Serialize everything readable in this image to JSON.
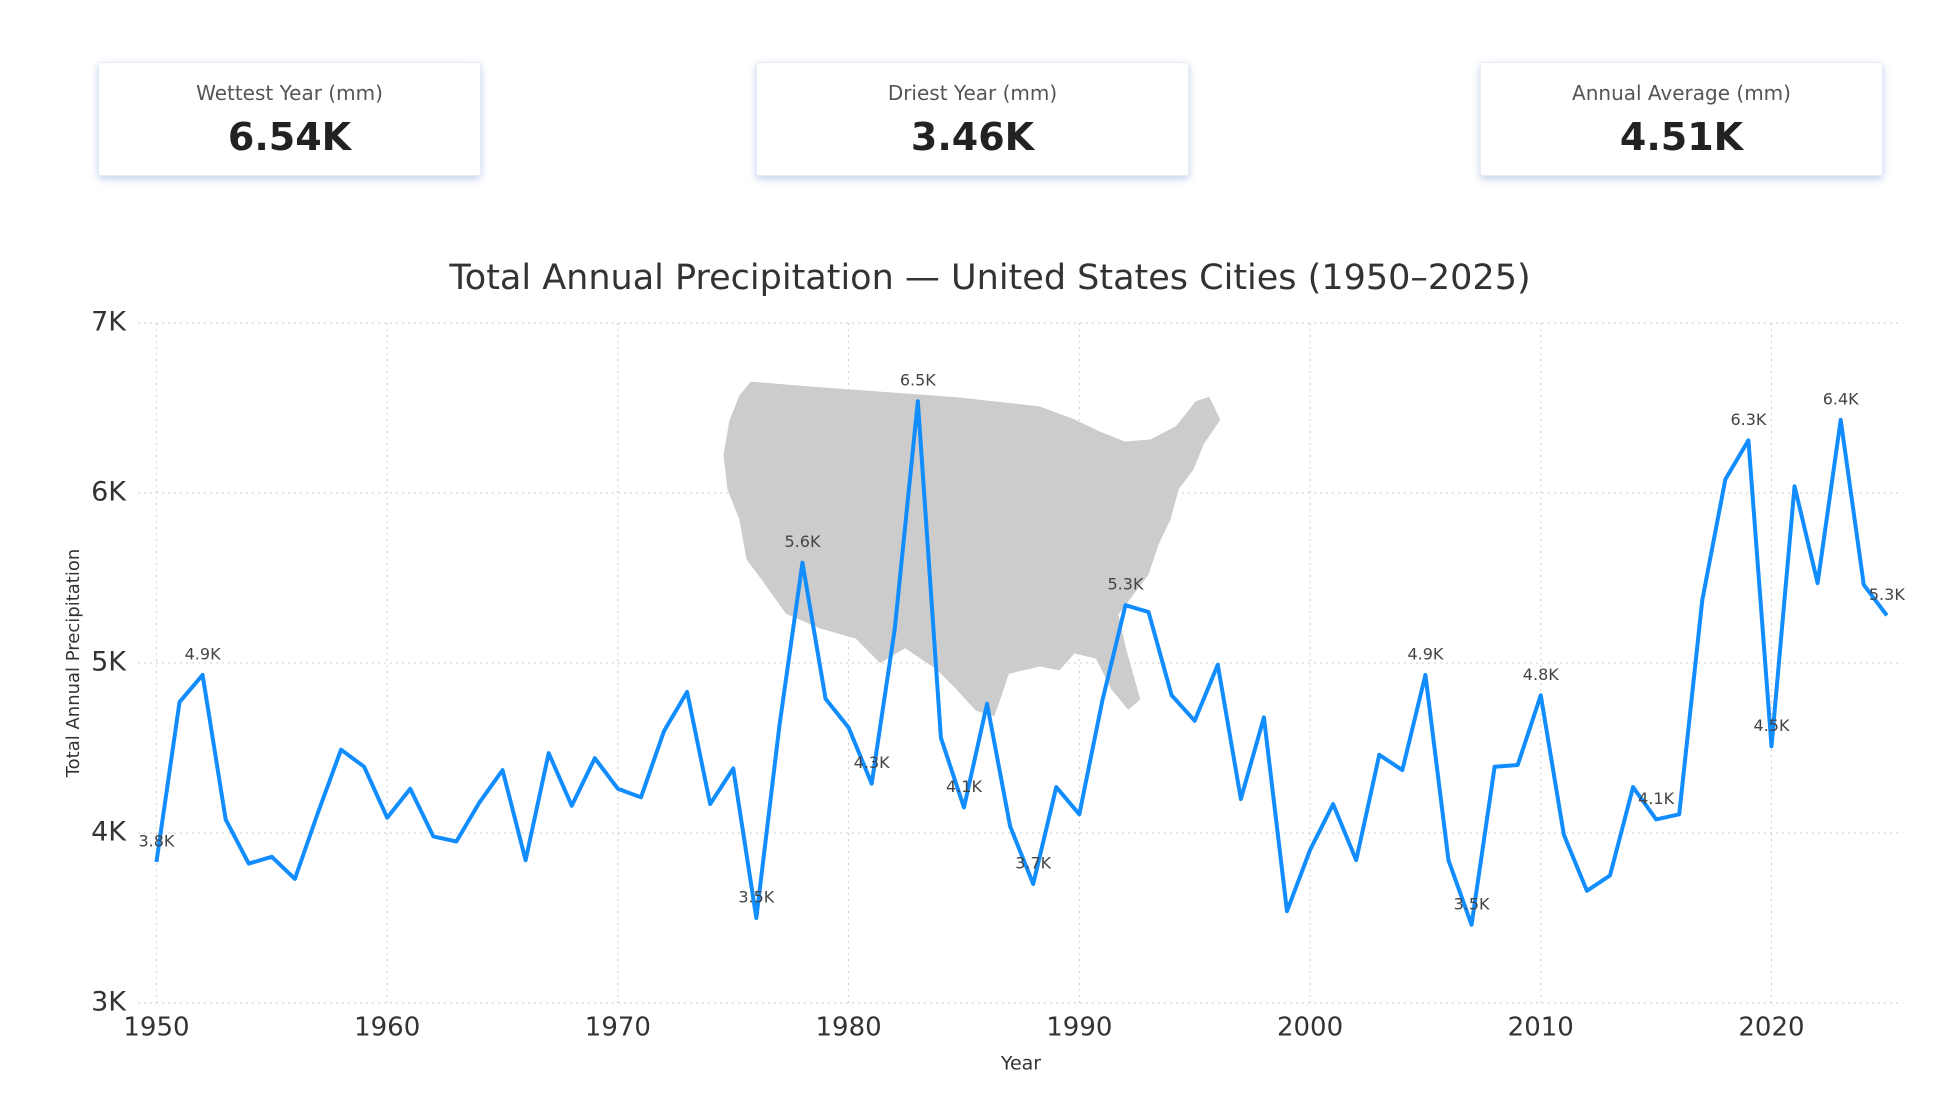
{
  "cards": [
    {
      "label": "Wettest Year (mm)",
      "value": "6.54K"
    },
    {
      "label": "Driest Year (mm)",
      "value": "3.46K"
    },
    {
      "label": "Annual Average (mm)",
      "value": "4.51K"
    }
  ],
  "chart_data": {
    "type": "line",
    "title": "Total Annual Precipitation — United States Cities (1950–2025)",
    "x_label": "Year",
    "y_label": "Total Annual Precipitation",
    "x": [
      1950,
      1951,
      1952,
      1953,
      1954,
      1955,
      1956,
      1957,
      1958,
      1959,
      1960,
      1961,
      1962,
      1963,
      1964,
      1965,
      1966,
      1967,
      1968,
      1969,
      1970,
      1971,
      1972,
      1973,
      1974,
      1975,
      1976,
      1977,
      1978,
      1979,
      1980,
      1981,
      1982,
      1983,
      1984,
      1985,
      1986,
      1987,
      1988,
      1989,
      1990,
      1991,
      1992,
      1993,
      1994,
      1995,
      1996,
      1997,
      1998,
      1999,
      2000,
      2001,
      2002,
      2003,
      2004,
      2005,
      2006,
      2007,
      2008,
      2009,
      2010,
      2011,
      2012,
      2013,
      2014,
      2015,
      2016,
      2017,
      2018,
      2019,
      2020,
      2021,
      2022,
      2023,
      2024,
      2025
    ],
    "values": [
      3830,
      4770,
      4930,
      4080,
      3820,
      3860,
      3730,
      4120,
      4490,
      4390,
      4090,
      4260,
      3980,
      3950,
      4180,
      4370,
      3840,
      4470,
      4160,
      4440,
      4260,
      4210,
      4600,
      4830,
      4170,
      4380,
      3500,
      4630,
      5590,
      4790,
      4620,
      4290,
      5200,
      6540,
      4560,
      4150,
      4760,
      4040,
      3700,
      4270,
      4110,
      4780,
      5340,
      5300,
      4810,
      4660,
      4990,
      4200,
      4680,
      3540,
      3900,
      4170,
      3840,
      4460,
      4370,
      4930,
      3840,
      3460,
      4390,
      4400,
      4810,
      3990,
      3660,
      3750,
      4270,
      4080,
      4110,
      5370,
      6080,
      6310,
      4510,
      6040,
      5470,
      6430,
      5460,
      5280
    ],
    "value_labels": [
      "3.8K",
      null,
      "4.9K",
      null,
      null,
      null,
      null,
      null,
      null,
      null,
      null,
      null,
      null,
      null,
      null,
      null,
      null,
      null,
      null,
      null,
      null,
      null,
      null,
      null,
      null,
      null,
      "3.5K",
      null,
      "5.6K",
      null,
      null,
      "4.3K",
      null,
      "6.5K",
      null,
      "4.1K",
      null,
      null,
      "3.7K",
      null,
      null,
      null,
      "5.3K",
      null,
      null,
      null,
      null,
      null,
      null,
      null,
      null,
      null,
      null,
      null,
      null,
      "4.9K",
      null,
      "3.5K",
      null,
      null,
      "4.8K",
      null,
      null,
      null,
      null,
      "4.1K",
      null,
      null,
      null,
      "6.3K",
      "4.5K",
      null,
      null,
      "6.4K",
      null,
      "5.3K"
    ],
    "color": "#118dff",
    "xlim": [
      1949.2,
      2025.7
    ],
    "xticks": [
      1950,
      1960,
      1970,
      1980,
      1990,
      2000,
      2010,
      2020
    ],
    "ylim": [
      3000,
      7000
    ],
    "yticks": [
      {
        "value": 3000,
        "label": "3K"
      },
      {
        "value": 4000,
        "label": "4K"
      },
      {
        "value": 5000,
        "label": "5K"
      },
      {
        "value": 6000,
        "label": "6K"
      },
      {
        "value": 7000,
        "label": "7K"
      }
    ],
    "grid": true
  }
}
